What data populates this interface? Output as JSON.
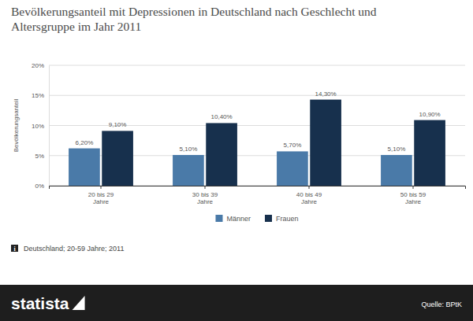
{
  "chart_data": {
    "type": "bar",
    "title": "Bevölkerungsanteil mit Depressionen in Deutschland nach Geschlecht und Altersgruppe im Jahr 2011",
    "y_label": "Bevölkerungsanteil",
    "categories": [
      "20 bis 29 Jahre",
      "30 bis 39 Jahre",
      "40 bis 49 Jahre",
      "50 bis 59 Jahre"
    ],
    "series": [
      {
        "name": "Männer",
        "color": "#4a7aa8",
        "values": [
          6.2,
          5.1,
          5.7,
          5.1
        ],
        "value_labels": [
          "6,20%",
          "5,10%",
          "5,70%",
          "5,10%"
        ]
      },
      {
        "name": "Frauen",
        "color": "#17304d",
        "values": [
          9.1,
          10.4,
          14.3,
          10.9
        ],
        "value_labels": [
          "9,10%",
          "10,40%",
          "14,30%",
          "10,90%"
        ]
      }
    ],
    "ylim": [
      0,
      20
    ],
    "yticks": [
      {
        "value": 0,
        "label": "0%"
      },
      {
        "value": 5,
        "label": "5%"
      },
      {
        "value": 10,
        "label": "10%"
      },
      {
        "value": 15,
        "label": "15%"
      },
      {
        "value": 20,
        "label": "20%"
      }
    ],
    "grid": true,
    "data_labels": true,
    "legend": "bottom",
    "note": "Deutschland; 20-59 Jahre; 2011",
    "brand": "statista",
    "source": "Quelle: BPtK"
  }
}
